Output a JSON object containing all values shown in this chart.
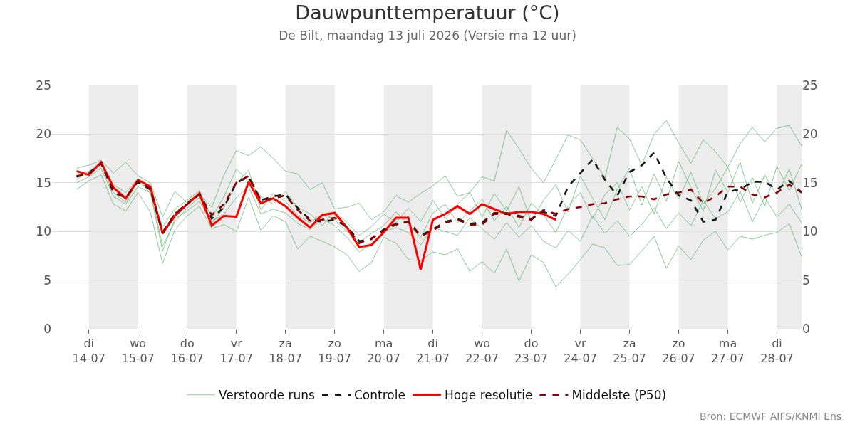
{
  "chart_data": {
    "type": "line",
    "title": "Dauwpunttemperatuur (°C)",
    "subtitle": "De Bilt, maandag 13 juli 2026 (Versie ma 12 uur)",
    "annotations": [
      "Bron: ECMWF AIFS/KNMI Ens"
    ],
    "x": [
      "2026-07-13T18:00",
      "2026-07-14T00:00",
      "2026-07-14T06:00",
      "2026-07-14T12:00",
      "2026-07-14T18:00",
      "2026-07-15T00:00",
      "2026-07-15T06:00",
      "2026-07-15T12:00",
      "2026-07-15T18:00",
      "2026-07-16T00:00",
      "2026-07-16T06:00",
      "2026-07-16T12:00",
      "2026-07-16T18:00",
      "2026-07-17T00:00",
      "2026-07-17T06:00",
      "2026-07-17T12:00",
      "2026-07-17T18:00",
      "2026-07-18T00:00",
      "2026-07-18T06:00",
      "2026-07-18T12:00",
      "2026-07-18T18:00",
      "2026-07-19T00:00",
      "2026-07-19T06:00",
      "2026-07-19T12:00",
      "2026-07-19T18:00",
      "2026-07-20T00:00",
      "2026-07-20T06:00",
      "2026-07-20T12:00",
      "2026-07-20T18:00",
      "2026-07-21T00:00",
      "2026-07-21T06:00",
      "2026-07-21T12:00",
      "2026-07-21T18:00",
      "2026-07-22T00:00",
      "2026-07-22T06:00",
      "2026-07-22T12:00",
      "2026-07-22T18:00",
      "2026-07-23T00:00",
      "2026-07-23T06:00",
      "2026-07-23T12:00",
      "2026-07-23T18:00",
      "2026-07-24T00:00",
      "2026-07-24T06:00",
      "2026-07-24T12:00",
      "2026-07-24T18:00",
      "2026-07-25T00:00",
      "2026-07-25T06:00",
      "2026-07-25T12:00",
      "2026-07-25T18:00",
      "2026-07-26T00:00",
      "2026-07-26T06:00",
      "2026-07-26T12:00",
      "2026-07-26T18:00",
      "2026-07-27T00:00",
      "2026-07-27T06:00",
      "2026-07-27T12:00",
      "2026-07-27T18:00",
      "2026-07-28T00:00",
      "2026-07-28T06:00",
      "2026-07-28T12:00"
    ],
    "series": [
      {
        "name": "Verstoorde runs",
        "color": "#2e9e44",
        "line_style": "solid",
        "values": [
          16.5,
          16.8,
          17.3,
          16.0,
          17.1,
          15.7,
          15.0,
          11.5,
          14.1,
          12.9,
          13.8,
          12.5,
          15.8,
          18.3,
          17.8,
          18.7,
          17.5,
          16.2,
          15.9,
          14.3,
          15.0,
          12.3,
          12.5,
          12.9,
          11.2,
          12.0,
          13.7,
          13.0,
          13.9,
          14.7,
          15.7,
          13.6,
          14.0,
          15.6,
          15.2,
          20.4,
          18.5,
          16.5,
          15.0,
          17.4,
          19.9,
          19.4,
          17.5,
          15.5,
          20.7,
          19.5,
          16.8,
          20.0,
          21.4,
          19.1,
          17.0,
          19.4,
          18.2,
          16.6,
          19.0,
          20.7,
          19.2,
          20.6,
          20.9,
          18.8
        ]
      },
      {
        "color": "#2e9e44",
        "line_style": "solid",
        "values": [
          14.3,
          15.2,
          15.8,
          12.8,
          12.1,
          14.0,
          12.0,
          6.7,
          10.2,
          11.6,
          12.6,
          10.3,
          10.7,
          10.0,
          13.5,
          10.1,
          11.6,
          11.0,
          8.2,
          9.5,
          9.0,
          8.4,
          7.6,
          5.9,
          6.8,
          9.4,
          8.8,
          7.1,
          7.0,
          7.9,
          7.6,
          8.2,
          5.9,
          6.9,
          5.7,
          8.2,
          4.9,
          7.6,
          6.8,
          4.3,
          5.6,
          7.1,
          8.7,
          8.3,
          6.5,
          6.6,
          8.0,
          9.5,
          6.2,
          8.5,
          7.1,
          9.1,
          10.0,
          8.1,
          9.5,
          9.2,
          9.6,
          9.9,
          10.8,
          7.4
        ]
      },
      {
        "color": "#2e9e44",
        "line_style": "solid",
        "values": [
          15.3,
          16.2,
          16.9,
          14.0,
          13.0,
          15.1,
          14.3,
          8.5,
          11.0,
          12.4,
          13.5,
          10.8,
          12.5,
          14.9,
          16.3,
          12.2,
          13.9,
          13.1,
          11.6,
          10.9,
          11.8,
          11.2,
          10.0,
          8.9,
          9.8,
          10.6,
          12.0,
          10.7,
          9.4,
          11.9,
          12.8,
          10.9,
          12.1,
          13.3,
          11.1,
          12.6,
          10.4,
          12.9,
          11.7,
          9.9,
          12.6,
          14.0,
          11.3,
          13.8,
          15.0,
          12.2,
          14.6,
          11.8,
          15.6,
          13.3,
          16.1,
          12.8,
          14.4,
          16.6,
          13.0,
          15.5,
          12.6,
          16.7,
          14.2,
          16.9
        ]
      },
      {
        "color": "#2e9e44",
        "line_style": "solid",
        "values": [
          15.9,
          16.0,
          17.2,
          14.8,
          14.0,
          15.4,
          13.9,
          10.5,
          12.3,
          13.2,
          14.2,
          11.4,
          13.6,
          16.4,
          15.2,
          13.6,
          12.8,
          14.1,
          12.5,
          11.8,
          10.6,
          12.1,
          10.9,
          9.6,
          10.5,
          11.8,
          10.9,
          12.4,
          11.0,
          13.2,
          11.3,
          12.8,
          14.0,
          11.5,
          13.9,
          12.1,
          14.6,
          11.0,
          13.2,
          14.8,
          12.0,
          15.7,
          13.4,
          11.2,
          14.3,
          16.5,
          12.7,
          15.9,
          13.1,
          17.2,
          14.5,
          12.1,
          16.3,
          14.0,
          17.1,
          12.9,
          15.8,
          13.7,
          16.4,
          12.3
        ]
      },
      {
        "color": "#2e9e44",
        "line_style": "solid",
        "values": [
          15.0,
          15.6,
          16.5,
          13.6,
          12.8,
          14.6,
          14.0,
          8.0,
          11.3,
          12.1,
          13.1,
          11.0,
          11.8,
          13.5,
          14.6,
          11.8,
          12.3,
          11.9,
          10.8,
          10.2,
          11.3,
          10.6,
          9.4,
          7.9,
          8.8,
          10.0,
          10.4,
          9.9,
          8.6,
          10.4,
          10.0,
          9.6,
          11.4,
          10.3,
          9.2,
          10.9,
          9.4,
          10.6,
          9.0,
          8.3,
          10.1,
          9.0,
          11.6,
          9.8,
          11.1,
          9.5,
          10.7,
          12.4,
          10.3,
          11.9,
          10.6,
          13.2,
          11.3,
          12.0,
          14.1,
          11.0,
          13.5,
          11.5,
          12.8,
          10.9
        ]
      },
      {
        "name": "Controle",
        "color": "#1a1a1a",
        "line_style": "dashed",
        "values": [
          15.6,
          16.0,
          17.0,
          14.0,
          13.5,
          15.1,
          14.3,
          9.9,
          11.8,
          12.9,
          13.9,
          11.3,
          12.5,
          15.0,
          15.6,
          13.2,
          13.6,
          13.8,
          12.4,
          11.2,
          11.0,
          11.2,
          10.5,
          9.0,
          9.2,
          10.2,
          10.8,
          11.0,
          9.6,
          10.2,
          11.0,
          11.3,
          10.8,
          10.9,
          11.9,
          11.9,
          11.6,
          11.3,
          12.0,
          11.6,
          14.6,
          16.0,
          17.4,
          15.3,
          13.7,
          16.1,
          16.8,
          18.1,
          15.5,
          13.7,
          13.2,
          11.0,
          11.2,
          14.1,
          14.3,
          15.1,
          15.1,
          14.3,
          15.2,
          14.0
        ]
      },
      {
        "name": "Hoge resolutie",
        "color": "#ff0000",
        "line_style": "solid",
        "values": [
          16.2,
          15.8,
          17.1,
          14.5,
          13.4,
          15.3,
          14.6,
          9.8,
          11.6,
          12.8,
          13.9,
          10.6,
          11.6,
          11.5,
          15.1,
          12.9,
          13.4,
          12.6,
          11.4,
          10.4,
          11.7,
          11.9,
          10.4,
          8.4,
          8.6,
          9.9,
          11.4,
          11.4,
          6.1,
          11.2,
          11.8,
          12.6,
          11.8,
          12.8,
          12.3,
          11.8,
          12.0,
          12.0,
          11.8,
          11.2,
          null,
          null,
          null,
          null,
          null,
          null,
          null,
          null,
          null,
          null,
          null,
          null,
          null,
          null,
          null,
          null,
          null,
          null,
          null,
          null
        ]
      },
      {
        "name": "Middelste (P50)",
        "color": "#8b0000",
        "line_style": "dashed",
        "values": [
          15.7,
          15.9,
          17.0,
          14.2,
          13.4,
          15.2,
          14.4,
          9.8,
          11.8,
          12.8,
          13.8,
          11.7,
          12.8,
          15.0,
          15.7,
          13.2,
          13.4,
          13.7,
          12.2,
          11.1,
          11.2,
          11.4,
          10.4,
          8.8,
          9.3,
          10.1,
          10.7,
          11.0,
          9.5,
          10.1,
          10.9,
          11.2,
          10.7,
          10.7,
          11.8,
          11.8,
          11.5,
          11.2,
          12.2,
          11.8,
          12.3,
          12.5,
          12.8,
          12.9,
          13.3,
          13.6,
          13.6,
          13.3,
          13.8,
          14.0,
          14.3,
          12.9,
          13.6,
          14.6,
          14.6,
          13.8,
          13.5,
          14.0,
          14.8,
          14.0
        ]
      }
    ],
    "xlim": [
      "2026-07-13T06:00",
      "2026-07-28T12:00"
    ],
    "xticks": [
      {
        "value": "2026-07-14",
        "label": "di\n14-07"
      },
      {
        "value": "2026-07-15",
        "label": "wo\n15-07"
      },
      {
        "value": "2026-07-16",
        "label": "do\n16-07"
      },
      {
        "value": "2026-07-17",
        "label": "vr\n17-07"
      },
      {
        "value": "2026-07-18",
        "label": "za\n18-07"
      },
      {
        "value": "2026-07-19",
        "label": "zo\n19-07"
      },
      {
        "value": "2026-07-20",
        "label": "ma\n20-07"
      },
      {
        "value": "2026-07-21",
        "label": "di\n21-07"
      },
      {
        "value": "2026-07-22",
        "label": "wo\n22-07"
      },
      {
        "value": "2026-07-23",
        "label": "do\n23-07"
      },
      {
        "value": "2026-07-24",
        "label": "vr\n24-07"
      },
      {
        "value": "2026-07-25",
        "label": "za\n25-07"
      },
      {
        "value": "2026-07-26",
        "label": "zo\n26-07"
      },
      {
        "value": "2026-07-27",
        "label": "ma\n27-07"
      },
      {
        "value": "2026-07-28",
        "label": "di\n28-07"
      }
    ],
    "ylim": [
      0,
      25
    ],
    "yticks": [
      0,
      5,
      10,
      15,
      20,
      25
    ],
    "y2lim": [
      0,
      25
    ],
    "y2ticks": [
      0,
      5,
      10,
      15,
      20,
      25
    ],
    "bands": [
      {
        "axis": "x",
        "from": "2026-07-14",
        "to": "2026-07-15",
        "color": "#ececec"
      },
      {
        "axis": "x",
        "from": "2026-07-16",
        "to": "2026-07-17",
        "color": "#ececec"
      },
      {
        "axis": "x",
        "from": "2026-07-18",
        "to": "2026-07-19",
        "color": "#ececec"
      },
      {
        "axis": "x",
        "from": "2026-07-20",
        "to": "2026-07-21",
        "color": "#ececec"
      },
      {
        "axis": "x",
        "from": "2026-07-22",
        "to": "2026-07-23",
        "color": "#ececec"
      },
      {
        "axis": "x",
        "from": "2026-07-24",
        "to": "2026-07-25",
        "color": "#ececec"
      },
      {
        "axis": "x",
        "from": "2026-07-26",
        "to": "2026-07-27",
        "color": "#ececec"
      },
      {
        "axis": "x",
        "from": "2026-07-28",
        "to": "2026-07-28T12:00",
        "color": "#ececec"
      }
    ],
    "grid": "y",
    "legend": "bottom",
    "marker": "none"
  }
}
